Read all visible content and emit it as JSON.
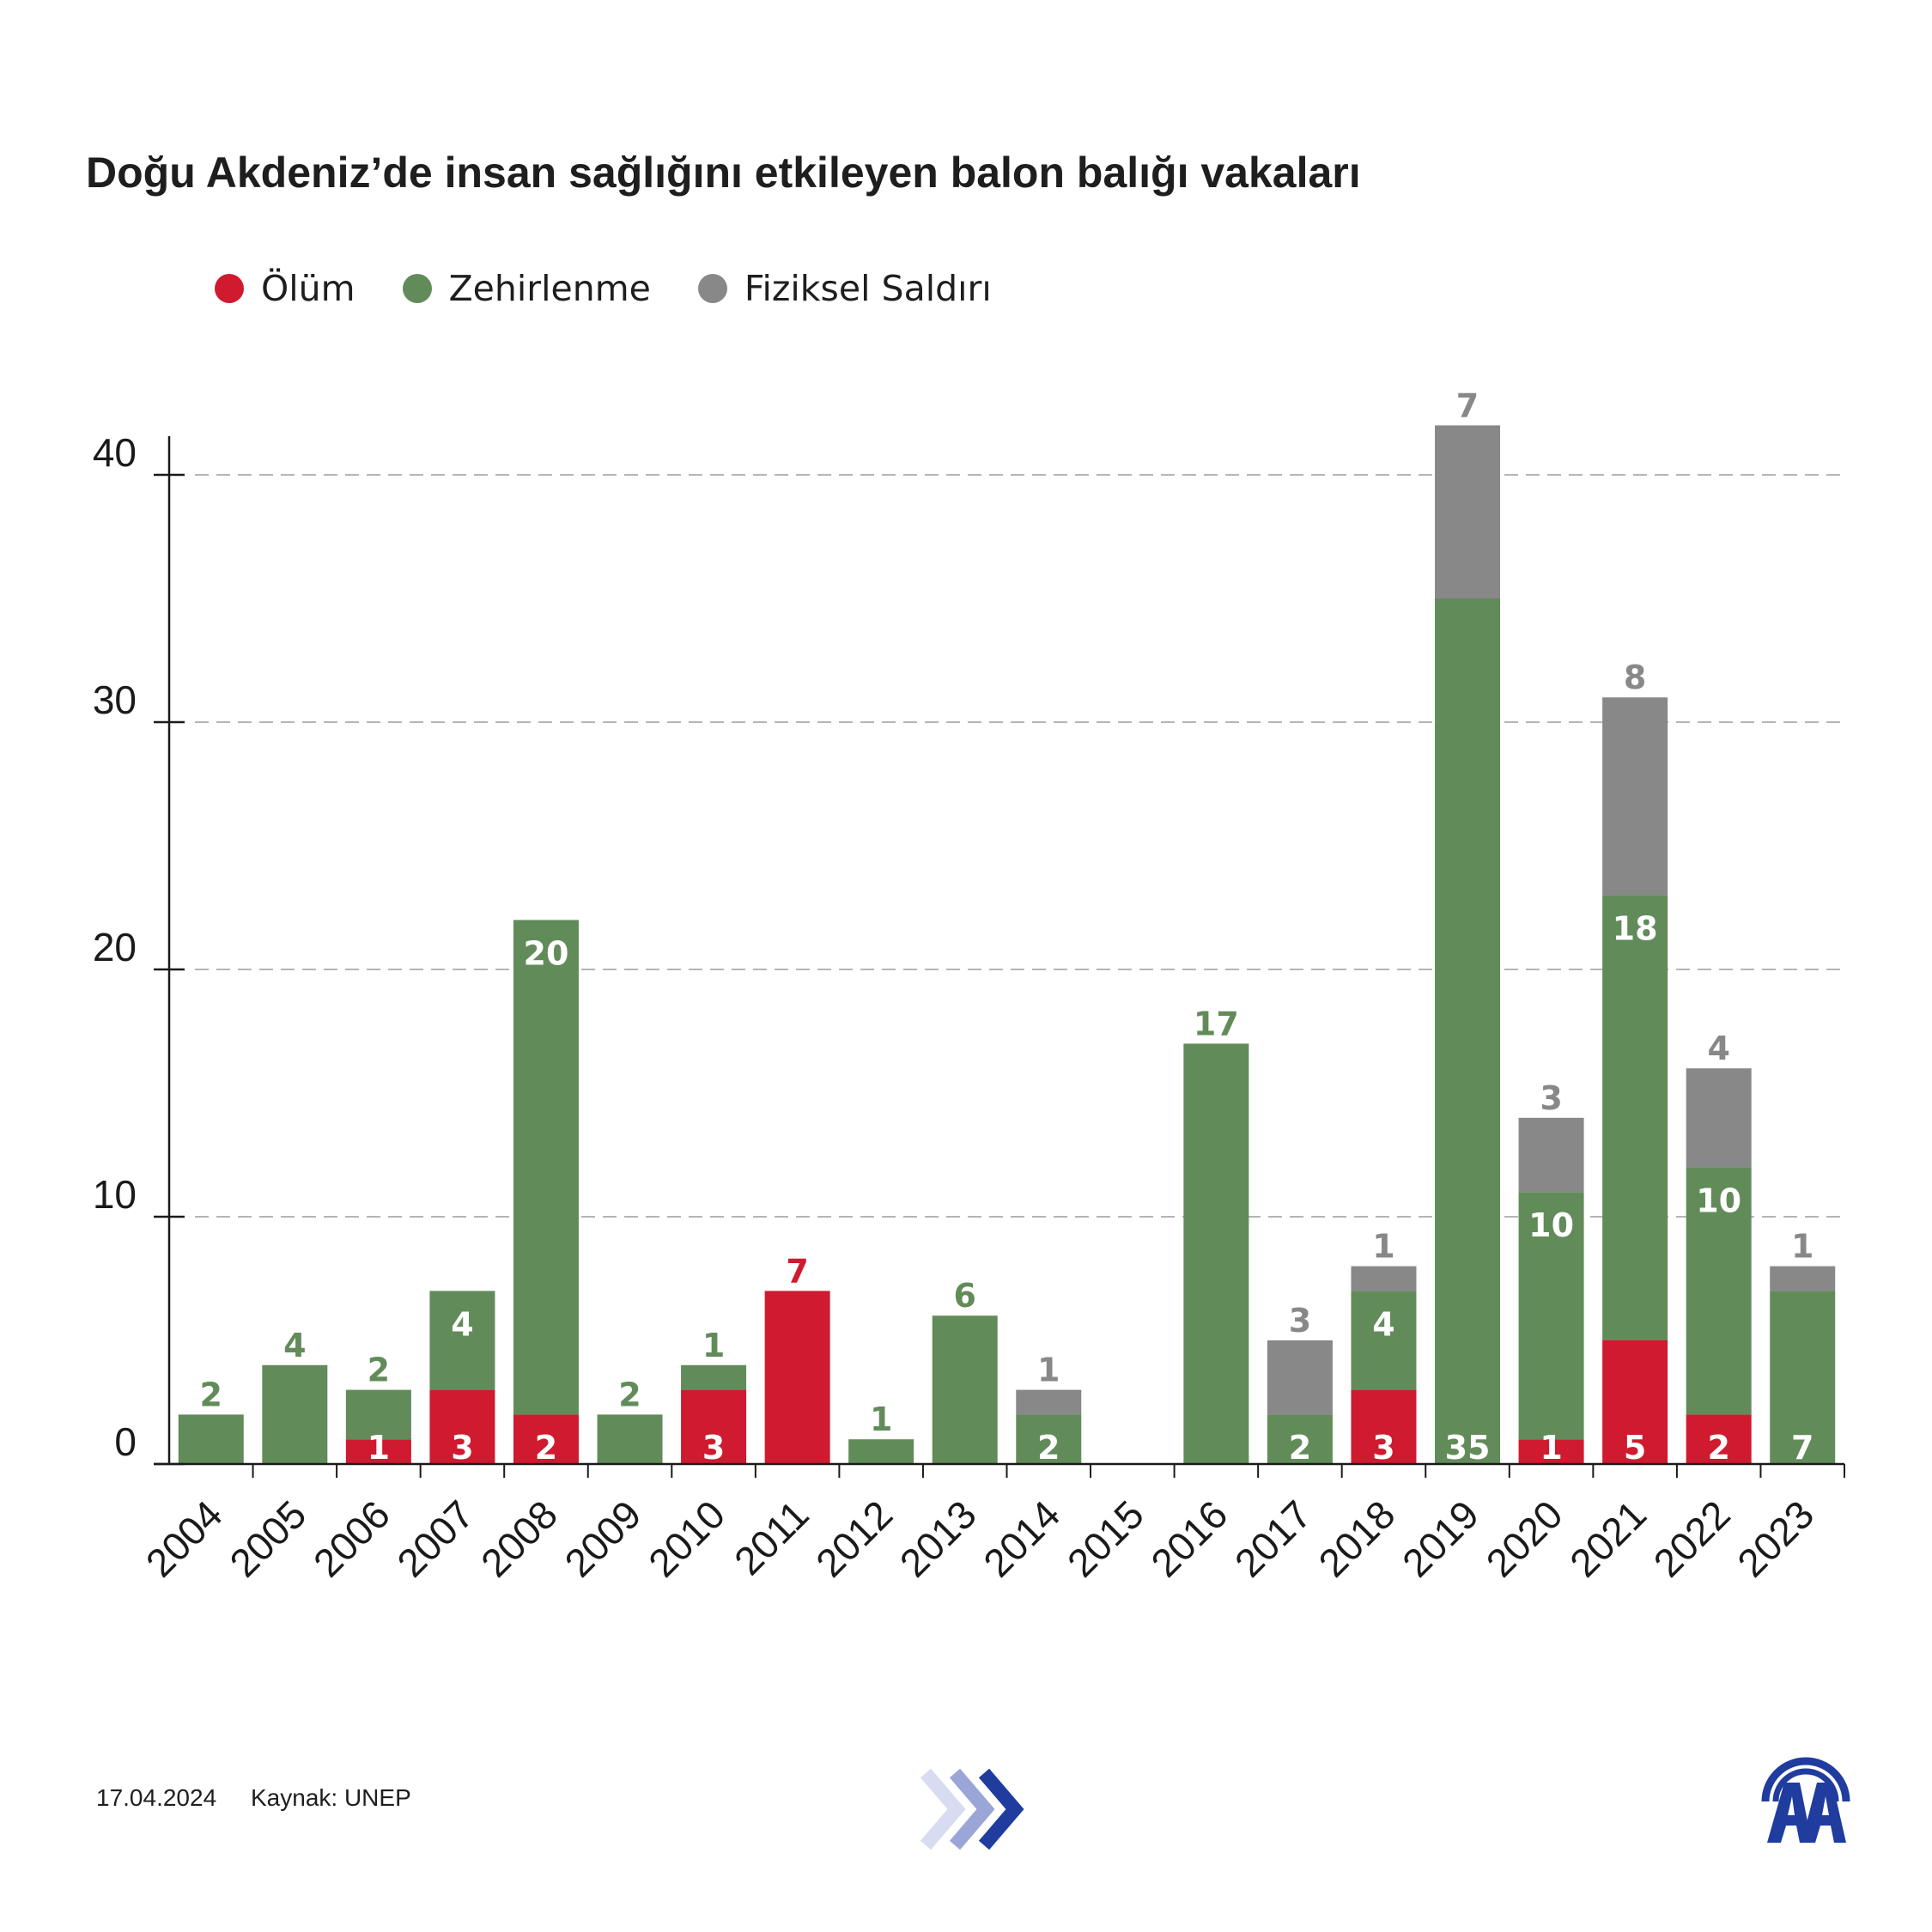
{
  "title": "Doğu Akdeniz’de insan sağlığını etkileyen balon balığı vakaları",
  "legend": [
    {
      "label": "Ölüm",
      "color": "#cf1a2f"
    },
    {
      "label": "Zehirlenme",
      "color": "#628b5a"
    },
    {
      "label": "Fiziksel Saldırı",
      "color": "#888888"
    }
  ],
  "footer": {
    "date": "17.04.2024",
    "source": "Kaynak: UNEP"
  },
  "icons": {
    "arrows": "forward-chevrons-icon",
    "logo": "AA"
  },
  "chart_data": {
    "type": "bar",
    "stacked": true,
    "categories": [
      "2004",
      "2005",
      "2006",
      "2007",
      "2008",
      "2009",
      "2010",
      "2011",
      "2012",
      "2013",
      "2014",
      "2015",
      "2016",
      "2017",
      "2018",
      "2019",
      "2020",
      "2021",
      "2022",
      "2023"
    ],
    "series": [
      {
        "name": "Ölüm",
        "color": "#cf1a2f",
        "values": [
          0,
          0,
          1,
          3,
          2,
          0,
          3,
          7,
          0,
          0,
          0,
          0,
          0,
          0,
          3,
          0,
          1,
          5,
          2,
          0
        ]
      },
      {
        "name": "Zehirlenme",
        "color": "#628b5a",
        "values": [
          2,
          4,
          2,
          4,
          20,
          2,
          1,
          0,
          1,
          6,
          2,
          0,
          17,
          2,
          4,
          35,
          10,
          18,
          10,
          7
        ]
      },
      {
        "name": "Fiziksel Saldırı",
        "color": "#888888",
        "values": [
          0,
          0,
          0,
          0,
          0,
          0,
          0,
          0,
          0,
          0,
          1,
          0,
          0,
          3,
          1,
          7,
          3,
          8,
          4,
          1
        ]
      }
    ],
    "yticks": [
      0,
      10,
      20,
      30,
      40
    ],
    "ylim": [
      0,
      42
    ],
    "grid": "dashed horizontal"
  }
}
